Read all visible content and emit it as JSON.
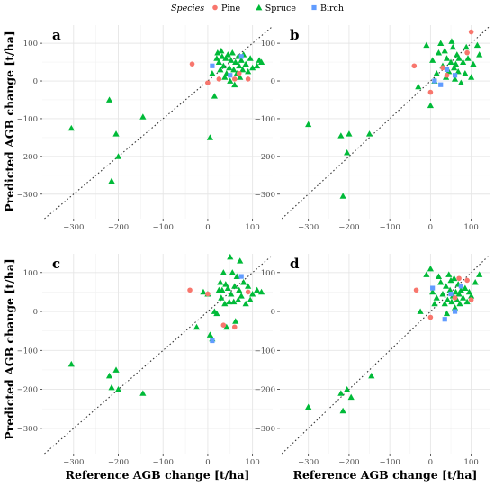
{
  "legend": {
    "title": "Species",
    "items": [
      {
        "label": "Pine",
        "shape": "circle",
        "color": "#f8766d"
      },
      {
        "label": "Spruce",
        "shape": "triangle",
        "color": "#00ba38"
      },
      {
        "label": "Birch",
        "shape": "square",
        "color": "#619cff"
      }
    ]
  },
  "xlabel": "Reference AGB change [t/ha]",
  "ylabel": "Predicted AGB change [t/ha]",
  "chart_data": [
    {
      "type": "scatter",
      "panel": "a",
      "xlim": [
        -370,
        145
      ],
      "ylim": [
        -365,
        148
      ],
      "xticks": [
        -300,
        -200,
        -100,
        0,
        100
      ],
      "yticks": [
        -300,
        -200,
        -100,
        0,
        100
      ],
      "grid": true,
      "identity_line": true,
      "series": [
        {
          "name": "Spruce",
          "points": [
            [
              -305,
              -125
            ],
            [
              -220,
              -50
            ],
            [
              -215,
              -265
            ],
            [
              -205,
              -140
            ],
            [
              -200,
              -200
            ],
            [
              -145,
              -95
            ],
            [
              5,
              -150
            ],
            [
              10,
              20
            ],
            [
              15,
              -40
            ],
            [
              20,
              60
            ],
            [
              22,
              75
            ],
            [
              25,
              50
            ],
            [
              28,
              30
            ],
            [
              30,
              80
            ],
            [
              32,
              65
            ],
            [
              35,
              40
            ],
            [
              38,
              10
            ],
            [
              40,
              60
            ],
            [
              42,
              20
            ],
            [
              45,
              70
            ],
            [
              48,
              35
            ],
            [
              50,
              0
            ],
            [
              52,
              55
            ],
            [
              55,
              75
            ],
            [
              58,
              30
            ],
            [
              60,
              -10
            ],
            [
              62,
              50
            ],
            [
              65,
              20
            ],
            [
              68,
              65
            ],
            [
              70,
              40
            ],
            [
              72,
              10
            ],
            [
              75,
              55
            ],
            [
              78,
              30
            ],
            [
              80,
              70
            ],
            [
              85,
              45
            ],
            [
              90,
              25
            ],
            [
              95,
              60
            ],
            [
              100,
              35
            ],
            [
              110,
              40
            ],
            [
              115,
              55
            ],
            [
              120,
              50
            ]
          ]
        },
        {
          "name": "Pine",
          "points": [
            [
              -35,
              45
            ],
            [
              0,
              -5
            ],
            [
              25,
              5
            ],
            [
              60,
              5
            ],
            [
              70,
              20
            ],
            [
              90,
              5
            ]
          ]
        },
        {
          "name": "Birch",
          "points": [
            [
              10,
              40
            ],
            [
              50,
              15
            ],
            [
              75,
              65
            ]
          ]
        }
      ]
    },
    {
      "type": "scatter",
      "panel": "b",
      "xlim": [
        -370,
        145
      ],
      "ylim": [
        -365,
        148
      ],
      "xticks": [
        -300,
        -200,
        -100,
        0,
        100
      ],
      "yticks": [
        -300,
        -200,
        -100,
        0,
        100
      ],
      "grid": true,
      "identity_line": true,
      "series": [
        {
          "name": "Spruce",
          "points": [
            [
              -300,
              -115
            ],
            [
              -220,
              -145
            ],
            [
              -215,
              -305
            ],
            [
              -205,
              -190
            ],
            [
              -200,
              -140
            ],
            [
              -150,
              -140
            ],
            [
              -30,
              -15
            ],
            [
              -10,
              95
            ],
            [
              0,
              -65
            ],
            [
              5,
              55
            ],
            [
              10,
              0
            ],
            [
              15,
              20
            ],
            [
              20,
              75
            ],
            [
              25,
              100
            ],
            [
              30,
              40
            ],
            [
              35,
              80
            ],
            [
              38,
              10
            ],
            [
              40,
              60
            ],
            [
              45,
              25
            ],
            [
              50,
              50
            ],
            [
              52,
              105
            ],
            [
              55,
              90
            ],
            [
              58,
              35
            ],
            [
              60,
              5
            ],
            [
              62,
              45
            ],
            [
              65,
              70
            ],
            [
              68,
              25
            ],
            [
              70,
              60
            ],
            [
              75,
              -5
            ],
            [
              80,
              50
            ],
            [
              85,
              20
            ],
            [
              88,
              90
            ],
            [
              92,
              60
            ],
            [
              100,
              10
            ],
            [
              105,
              45
            ],
            [
              115,
              95
            ],
            [
              120,
              70
            ]
          ]
        },
        {
          "name": "Pine",
          "points": [
            [
              -40,
              40
            ],
            [
              0,
              -30
            ],
            [
              30,
              35
            ],
            [
              40,
              15
            ],
            [
              90,
              75
            ],
            [
              100,
              130
            ]
          ]
        },
        {
          "name": "Birch",
          "points": [
            [
              10,
              0
            ],
            [
              25,
              -10
            ],
            [
              40,
              30
            ],
            [
              60,
              15
            ]
          ]
        }
      ]
    },
    {
      "type": "scatter",
      "panel": "c",
      "xlim": [
        -370,
        145
      ],
      "ylim": [
        -365,
        148
      ],
      "xticks": [
        -300,
        -200,
        -100,
        0,
        100
      ],
      "yticks": [
        -300,
        -200,
        -100,
        0,
        100
      ],
      "grid": true,
      "identity_line": true,
      "series": [
        {
          "name": "Spruce",
          "points": [
            [
              -305,
              -135
            ],
            [
              -220,
              -165
            ],
            [
              -215,
              -195
            ],
            [
              -205,
              -150
            ],
            [
              -200,
              -200
            ],
            [
              -145,
              -210
            ],
            [
              -25,
              -40
            ],
            [
              -10,
              50
            ],
            [
              0,
              45
            ],
            [
              5,
              -60
            ],
            [
              10,
              -70
            ],
            [
              15,
              0
            ],
            [
              20,
              -5
            ],
            [
              25,
              55
            ],
            [
              28,
              75
            ],
            [
              30,
              35
            ],
            [
              32,
              55
            ],
            [
              35,
              100
            ],
            [
              38,
              20
            ],
            [
              40,
              70
            ],
            [
              42,
              -40
            ],
            [
              45,
              60
            ],
            [
              48,
              25
            ],
            [
              50,
              140
            ],
            [
              52,
              45
            ],
            [
              55,
              100
            ],
            [
              58,
              25
            ],
            [
              60,
              65
            ],
            [
              62,
              -25
            ],
            [
              65,
              90
            ],
            [
              68,
              30
            ],
            [
              70,
              55
            ],
            [
              72,
              130
            ],
            [
              75,
              40
            ],
            [
              80,
              75
            ],
            [
              85,
              20
            ],
            [
              90,
              65
            ],
            [
              95,
              30
            ],
            [
              100,
              45
            ],
            [
              110,
              55
            ],
            [
              120,
              50
            ]
          ]
        },
        {
          "name": "Pine",
          "points": [
            [
              -40,
              55
            ],
            [
              0,
              45
            ],
            [
              35,
              -35
            ],
            [
              60,
              -40
            ],
            [
              90,
              50
            ]
          ]
        },
        {
          "name": "Birch",
          "points": [
            [
              10,
              -75
            ],
            [
              75,
              90
            ]
          ]
        }
      ]
    },
    {
      "type": "scatter",
      "panel": "d",
      "xlim": [
        -370,
        145
      ],
      "ylim": [
        -365,
        148
      ],
      "xticks": [
        -300,
        -200,
        -100,
        0,
        100
      ],
      "yticks": [
        -300,
        -200,
        -100,
        0,
        100
      ],
      "grid": true,
      "identity_line": true,
      "series": [
        {
          "name": "Spruce",
          "points": [
            [
              -300,
              -245
            ],
            [
              -220,
              -210
            ],
            [
              -215,
              -255
            ],
            [
              -205,
              -200
            ],
            [
              -195,
              -220
            ],
            [
              -145,
              -165
            ],
            [
              -25,
              0
            ],
            [
              -10,
              95
            ],
            [
              0,
              110
            ],
            [
              5,
              50
            ],
            [
              10,
              20
            ],
            [
              15,
              35
            ],
            [
              20,
              90
            ],
            [
              25,
              75
            ],
            [
              30,
              45
            ],
            [
              35,
              20
            ],
            [
              38,
              65
            ],
            [
              40,
              -5
            ],
            [
              42,
              30
            ],
            [
              45,
              95
            ],
            [
              48,
              55
            ],
            [
              50,
              80
            ],
            [
              52,
              25
            ],
            [
              55,
              40
            ],
            [
              58,
              85
            ],
            [
              60,
              10
            ],
            [
              62,
              50
            ],
            [
              65,
              30
            ],
            [
              68,
              70
            ],
            [
              70,
              45
            ],
            [
              72,
              20
            ],
            [
              75,
              55
            ],
            [
              80,
              35
            ],
            [
              85,
              60
            ],
            [
              90,
              25
            ],
            [
              95,
              50
            ],
            [
              100,
              40
            ],
            [
              110,
              75
            ],
            [
              120,
              95
            ]
          ]
        },
        {
          "name": "Pine",
          "points": [
            [
              -35,
              55
            ],
            [
              0,
              -15
            ],
            [
              60,
              35
            ],
            [
              70,
              85
            ],
            [
              90,
              80
            ],
            [
              100,
              30
            ]
          ]
        },
        {
          "name": "Birch",
          "points": [
            [
              5,
              60
            ],
            [
              35,
              -20
            ],
            [
              50,
              45
            ],
            [
              60,
              0
            ],
            [
              75,
              65
            ]
          ]
        }
      ]
    }
  ]
}
